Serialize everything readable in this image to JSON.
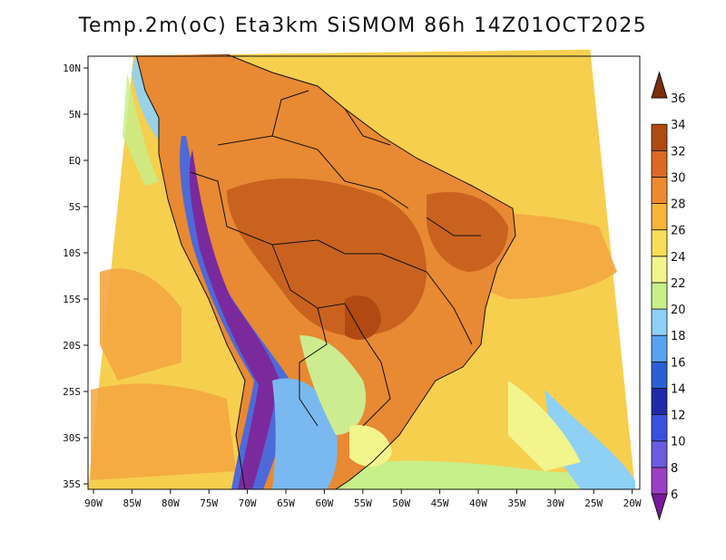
{
  "title": "Temp.2m(oC) Eta3km SiSMOM 86h 14Z01OCT2025",
  "map": {
    "x_ticks": [
      "90W",
      "85W",
      "80W",
      "75W",
      "70W",
      "65W",
      "60W",
      "55W",
      "50W",
      "45W",
      "40W",
      "35W",
      "30W",
      "25W",
      "20W"
    ],
    "y_ticks": [
      "10N",
      "5N",
      "EQ",
      "5S",
      "10S",
      "15S",
      "20S",
      "25S",
      "30S",
      "35S"
    ]
  },
  "colorbar": {
    "levels": [
      "6",
      "8",
      "10",
      "12",
      "14",
      "16",
      "18",
      "20",
      "22",
      "24",
      "26",
      "28",
      "30",
      "32",
      "34",
      "36"
    ],
    "colors": [
      "#7a1a9a",
      "#9b3fc4",
      "#6a5be0",
      "#3c50e0",
      "#1f2aa8",
      "#2a5fd6",
      "#5aa2f0",
      "#8fd0f5",
      "#c7ef8a",
      "#f2f48c",
      "#f6de58",
      "#f5b43a",
      "#ef8a2e",
      "#db6a22",
      "#b04a12",
      "#7a2e0a"
    ]
  },
  "palette": {
    "ocean_warm": "#f6cf4f",
    "ocean_hot": "#f3a640",
    "land_hot": "#e88933",
    "land_very_hot": "#c9621f",
    "andes_cold": "#7a2a9c",
    "andes_cool": "#4d6ad8",
    "south_cool": "#79b9f0",
    "south_mild": "#cdeb8f",
    "border": "#111111"
  }
}
